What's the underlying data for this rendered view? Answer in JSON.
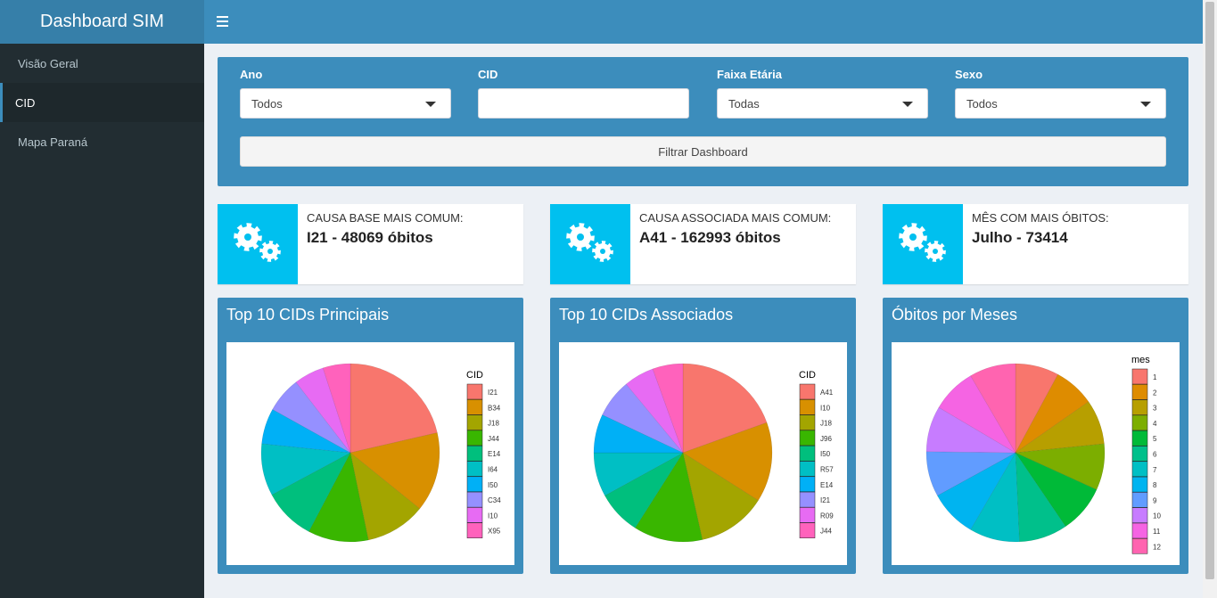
{
  "header": {
    "app_title": "Dashboard SIM"
  },
  "sidebar": {
    "items": [
      {
        "label": "Visão Geral"
      },
      {
        "label": "CID"
      },
      {
        "label": "Mapa Paraná"
      }
    ]
  },
  "filters": {
    "ano": {
      "label": "Ano",
      "value": "Todos"
    },
    "cid": {
      "label": "CID",
      "value": ""
    },
    "faixa": {
      "label": "Faixa Etária",
      "value": "Todas"
    },
    "sexo": {
      "label": "Sexo",
      "value": "Todos"
    },
    "button_label": "Filtrar Dashboard"
  },
  "infoboxes": [
    {
      "title": "CAUSA BASE MAIS COMUM:",
      "value": "I21 - 48069 óbitos",
      "icon": "gears-icon"
    },
    {
      "title": "CAUSA ASSOCIADA MAIS COMUM:",
      "value": "A41 - 162993 óbitos",
      "icon": "gears-icon"
    },
    {
      "title": "MÊS COM MAIS ÓBITOS:",
      "value": "Julho - 73414",
      "icon": "gears-icon"
    }
  ],
  "charts": [
    {
      "title": "Top 10 CIDs Principais"
    },
    {
      "title": "Top 10 CIDs Associados"
    },
    {
      "title": "Óbitos por Meses"
    }
  ],
  "chart_data": [
    {
      "type": "pie",
      "title": "Top 10 CIDs Principais",
      "legend_title": "CID",
      "categories": [
        "I21",
        "B34",
        "J18",
        "J44",
        "E14",
        "I64",
        "I50",
        "C34",
        "I10",
        "X95"
      ],
      "values": [
        21.5,
        14.5,
        11,
        11,
        9.5,
        9.5,
        6.5,
        6.5,
        5.5,
        5
      ],
      "colors": [
        "#F8766D",
        "#D89000",
        "#A3A500",
        "#39B600",
        "#00BF7D",
        "#00BFC4",
        "#00B0F6",
        "#9590FF",
        "#E76BF3",
        "#FF62BC"
      ]
    },
    {
      "type": "pie",
      "title": "Top 10 CIDs Associados",
      "legend_title": "CID",
      "categories": [
        "A41",
        "I10",
        "J18",
        "J96",
        "I50",
        "R57",
        "E14",
        "I21",
        "R09",
        "J44"
      ],
      "values": [
        19.5,
        14.5,
        12.5,
        12.5,
        8,
        8,
        7,
        7,
        5.5,
        5.5
      ],
      "colors": [
        "#F8766D",
        "#D89000",
        "#A3A500",
        "#39B600",
        "#00BF7D",
        "#00BFC4",
        "#00B0F6",
        "#9590FF",
        "#E76BF3",
        "#FF62BC"
      ]
    },
    {
      "type": "pie",
      "title": "Óbitos por Meses",
      "legend_title": "mes",
      "categories": [
        "1",
        "2",
        "3",
        "4",
        "5",
        "6",
        "7",
        "8",
        "9",
        "10",
        "11",
        "12"
      ],
      "values": [
        7.9,
        7.4,
        8.1,
        8.4,
        8.7,
        8.8,
        9.1,
        8.6,
        8.2,
        8.3,
        8.1,
        8.4
      ],
      "colors": [
        "#F8766D",
        "#DE8C00",
        "#B79F00",
        "#7CAE00",
        "#00BA38",
        "#00C08B",
        "#00BFC4",
        "#00B4F0",
        "#619CFF",
        "#C77CFF",
        "#F564E3",
        "#FF64B0"
      ]
    }
  ]
}
